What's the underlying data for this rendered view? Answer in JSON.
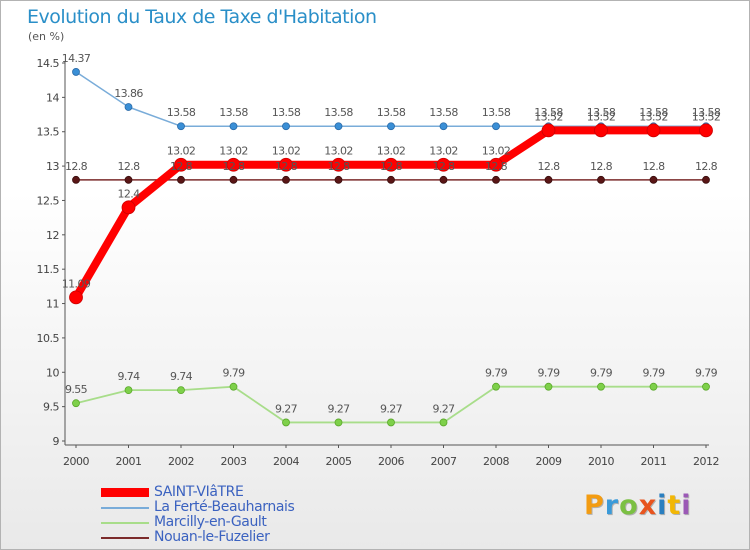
{
  "title": "Evolution du Taux de Taxe d'Habitation",
  "unit": "(en %)",
  "logo": "Proxiti",
  "chart_data": {
    "type": "line",
    "title": "Evolution du Taux de Taxe d'Habitation",
    "ylabel": "(en %)",
    "xlabel": "",
    "x": [
      "2000",
      "2001",
      "2002",
      "2003",
      "2004",
      "2005",
      "2006",
      "2007",
      "2008",
      "2009",
      "2010",
      "2011",
      "2012"
    ],
    "ylim": [
      9,
      14.5
    ],
    "yticks": [
      "9",
      "9.5",
      "10",
      "10.5",
      "11",
      "11.5",
      "12",
      "12.5",
      "13",
      "13.5",
      "14",
      "14.5"
    ],
    "grid": false,
    "legend_position": "bottom-left",
    "series": [
      {
        "name": "SAINT-VIâTRE",
        "color": "#ff0000",
        "values": [
          11.09,
          12.4,
          13.02,
          13.02,
          13.02,
          13.02,
          13.02,
          13.02,
          13.02,
          13.52,
          13.52,
          13.52,
          13.52
        ],
        "labels": [
          "11.09",
          "12.4",
          "13.02",
          "13.02",
          "13.02",
          "13.02",
          "13.02",
          "13.02",
          "13.02",
          "13.52",
          "13.52",
          "13.52",
          "13.52"
        ]
      },
      {
        "name": "La Ferté-Beauharnais",
        "color": "#79acd9",
        "values": [
          14.37,
          13.86,
          13.58,
          13.58,
          13.58,
          13.58,
          13.58,
          13.58,
          13.58,
          13.58,
          13.58,
          13.58,
          13.58
        ],
        "labels": [
          "14.37",
          "13.86",
          "13.58",
          "13.58",
          "13.58",
          "13.58",
          "13.58",
          "13.58",
          "13.58",
          "13.58",
          "13.58",
          "13.58",
          "13.58"
        ]
      },
      {
        "name": "Marcilly-en-Gault",
        "color": "#a8dd8a",
        "values": [
          9.55,
          9.74,
          9.74,
          9.79,
          9.27,
          9.27,
          9.27,
          9.27,
          9.79,
          9.79,
          9.79,
          9.79,
          9.79
        ],
        "labels": [
          "9.55",
          "9.74",
          "9.74",
          "9.79",
          "9.27",
          "9.27",
          "9.27",
          "9.27",
          "9.79",
          "9.79",
          "9.79",
          "9.79",
          "9.79"
        ]
      },
      {
        "name": "Nouan-le-Fuzelier",
        "color": "#7b2b2b",
        "values": [
          12.8,
          12.8,
          12.8,
          12.8,
          12.8,
          12.8,
          12.8,
          12.8,
          12.8,
          12.8,
          12.8,
          12.8,
          12.8
        ],
        "labels": [
          "12.8",
          "12.8",
          "12.8",
          "12.8",
          "12.8",
          "12.8",
          "12.8",
          "12.8",
          "12.8",
          "12.8",
          "12.8",
          "12.8",
          "12.8"
        ]
      }
    ]
  }
}
